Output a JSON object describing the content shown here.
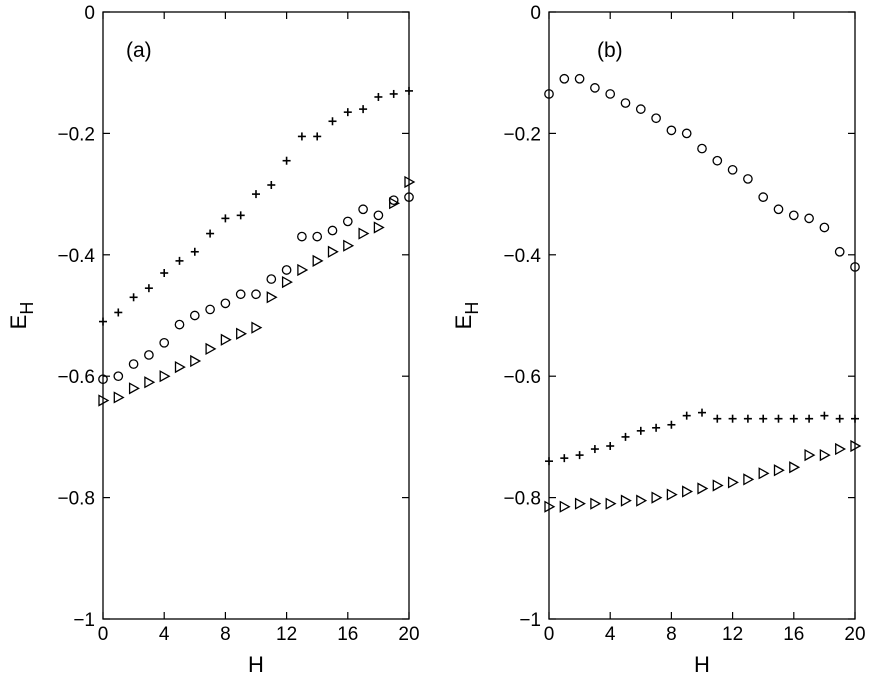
{
  "chart_data": [
    {
      "type": "scatter",
      "panel_label": "(a)",
      "xlabel": "H",
      "ylabel": "E_H",
      "xlim": [
        0,
        20
      ],
      "ylim": [
        -1,
        0
      ],
      "xticks": [
        "0",
        "4",
        "8",
        "12",
        "16",
        "20"
      ],
      "yticks": [
        "0",
        "−0.2",
        "−0.4",
        "−0.6",
        "−0.8",
        "−1"
      ],
      "grid": false,
      "legend": "none",
      "series": [
        {
          "marker": "plus",
          "x": [
            0,
            1,
            2,
            3,
            4,
            5,
            6,
            7,
            8,
            9,
            10,
            11,
            12,
            13,
            14,
            15,
            16,
            17,
            18,
            19,
            20
          ],
          "y": [
            -0.51,
            -0.495,
            -0.47,
            -0.455,
            -0.43,
            -0.41,
            -0.395,
            -0.365,
            -0.34,
            -0.335,
            -0.3,
            -0.285,
            -0.245,
            -0.205,
            -0.205,
            -0.18,
            -0.165,
            -0.16,
            -0.14,
            -0.135,
            -0.13
          ]
        },
        {
          "marker": "circle",
          "x": [
            0,
            1,
            2,
            3,
            4,
            5,
            6,
            7,
            8,
            9,
            10,
            11,
            12,
            13,
            14,
            15,
            16,
            17,
            18,
            19,
            20
          ],
          "y": [
            -0.605,
            -0.6,
            -0.58,
            -0.565,
            -0.545,
            -0.515,
            -0.5,
            -0.49,
            -0.48,
            -0.465,
            -0.465,
            -0.44,
            -0.425,
            -0.37,
            -0.37,
            -0.36,
            -0.345,
            -0.325,
            -0.335,
            -0.31,
            -0.305
          ]
        },
        {
          "marker": "triangle-right",
          "x": [
            0,
            1,
            2,
            3,
            4,
            5,
            6,
            7,
            8,
            9,
            10,
            11,
            12,
            13,
            14,
            15,
            16,
            17,
            18,
            19,
            20
          ],
          "y": [
            -0.64,
            -0.635,
            -0.62,
            -0.61,
            -0.6,
            -0.585,
            -0.575,
            -0.555,
            -0.54,
            -0.53,
            -0.52,
            -0.47,
            -0.445,
            -0.425,
            -0.41,
            -0.395,
            -0.385,
            -0.365,
            -0.355,
            -0.315,
            -0.28
          ]
        }
      ]
    },
    {
      "type": "scatter",
      "panel_label": "(b)",
      "xlabel": "H",
      "ylabel": "E_H",
      "xlim": [
        0,
        20
      ],
      "ylim": [
        -1,
        0
      ],
      "xticks": [
        "0",
        "4",
        "8",
        "12",
        "16",
        "20"
      ],
      "yticks": [
        "0",
        "−0.2",
        "−0.4",
        "−0.6",
        "−0.8",
        "−1"
      ],
      "grid": false,
      "legend": "none",
      "series": [
        {
          "marker": "circle",
          "x": [
            0,
            1,
            2,
            3,
            4,
            5,
            6,
            7,
            8,
            9,
            10,
            11,
            12,
            13,
            14,
            15,
            16,
            17,
            18,
            19,
            20
          ],
          "y": [
            -0.135,
            -0.11,
            -0.11,
            -0.125,
            -0.135,
            -0.15,
            -0.16,
            -0.175,
            -0.195,
            -0.2,
            -0.225,
            -0.245,
            -0.26,
            -0.275,
            -0.305,
            -0.325,
            -0.335,
            -0.34,
            -0.355,
            -0.395,
            -0.42
          ]
        },
        {
          "marker": "plus",
          "x": [
            0,
            1,
            2,
            3,
            4,
            5,
            6,
            7,
            8,
            9,
            10,
            11,
            12,
            13,
            14,
            15,
            16,
            17,
            18,
            19,
            20
          ],
          "y": [
            -0.74,
            -0.735,
            -0.73,
            -0.72,
            -0.715,
            -0.7,
            -0.69,
            -0.685,
            -0.68,
            -0.665,
            -0.66,
            -0.67,
            -0.67,
            -0.67,
            -0.67,
            -0.67,
            -0.67,
            -0.67,
            -0.665,
            -0.67,
            -0.67
          ]
        },
        {
          "marker": "triangle-right",
          "x": [
            0,
            1,
            2,
            3,
            4,
            5,
            6,
            7,
            8,
            9,
            10,
            11,
            12,
            13,
            14,
            15,
            16,
            17,
            18,
            19,
            20
          ],
          "y": [
            -0.815,
            -0.815,
            -0.81,
            -0.81,
            -0.81,
            -0.805,
            -0.805,
            -0.8,
            -0.795,
            -0.79,
            -0.785,
            -0.78,
            -0.775,
            -0.77,
            -0.76,
            -0.755,
            -0.75,
            -0.73,
            -0.73,
            -0.72,
            -0.715
          ]
        }
      ]
    }
  ]
}
